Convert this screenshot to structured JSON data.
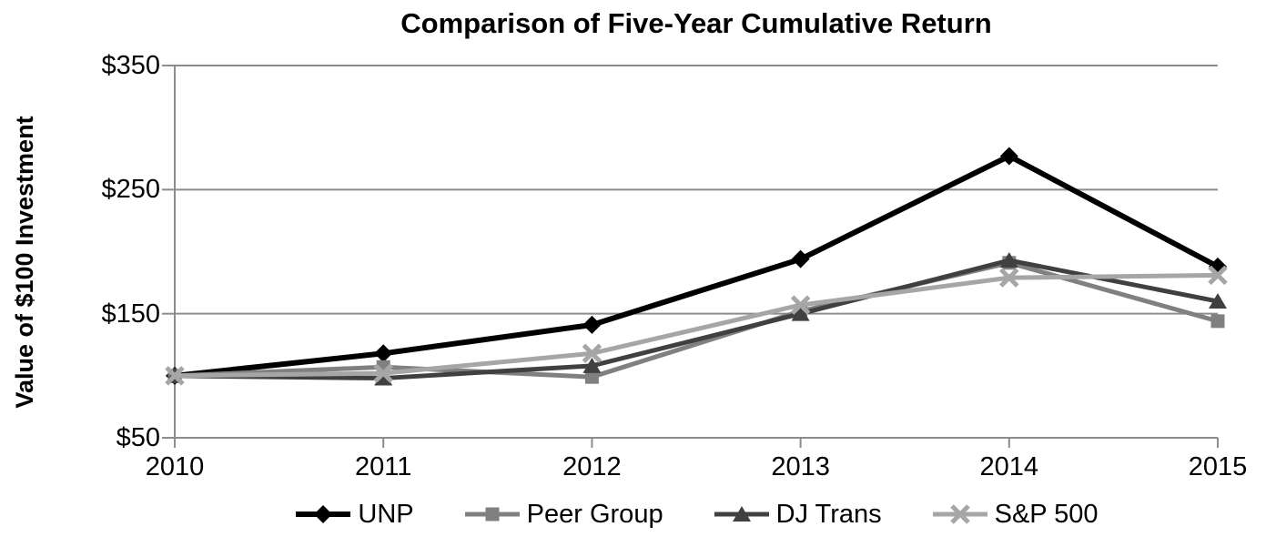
{
  "chart_data": {
    "type": "line",
    "title": "Comparison of Five-Year Cumulative Return",
    "xlabel": "",
    "ylabel": "Value of $100 Investment",
    "categories": [
      "2010",
      "2011",
      "2012",
      "2013",
      "2014",
      "2015"
    ],
    "ylim": [
      50,
      350
    ],
    "yticks": [
      {
        "label": "$350",
        "value": 350
      },
      {
        "label": "$250",
        "value": 250
      },
      {
        "label": "$150",
        "value": 150
      },
      {
        "label": "$50",
        "value": 50
      }
    ],
    "grid": true,
    "legend_position": "bottom",
    "series": [
      {
        "name": "UNP",
        "marker": "diamond",
        "color": "#000000",
        "line_width": 6,
        "values": [
          100,
          118,
          141,
          194,
          277,
          188
        ]
      },
      {
        "name": "Peer Group",
        "marker": "square",
        "color": "#808080",
        "line_width": 5,
        "values": [
          100,
          107,
          99,
          152,
          191,
          144
        ]
      },
      {
        "name": "DJ Trans",
        "marker": "triangle",
        "color": "#404040",
        "line_width": 5,
        "values": [
          100,
          98,
          108,
          150,
          193,
          160
        ]
      },
      {
        "name": "S&P 500",
        "marker": "x",
        "color": "#a6a6a6",
        "line_width": 5,
        "values": [
          100,
          102,
          118,
          157,
          179,
          181
        ]
      }
    ],
    "axis_color": "#8c8c8c",
    "background_color": "#ffffff",
    "text_color": "#000000"
  }
}
